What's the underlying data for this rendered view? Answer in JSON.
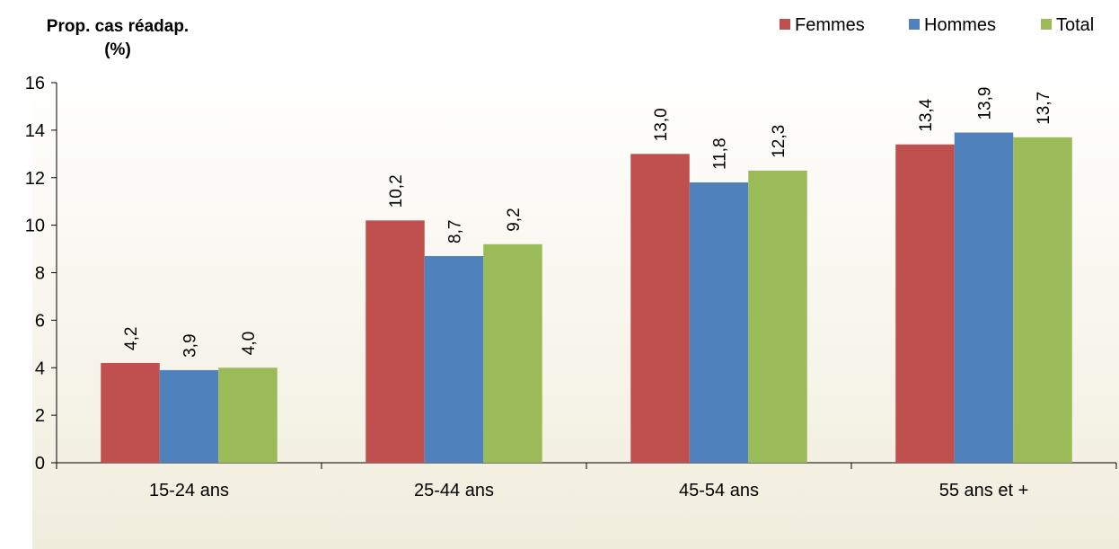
{
  "chart_data": {
    "type": "bar",
    "ylabel_lines": [
      "Prop. cas réadap.",
      "(%)"
    ],
    "categories": [
      "15-24 ans",
      "25-44 ans",
      "45-54 ans",
      "55 ans et +"
    ],
    "series": [
      {
        "name": "Femmes",
        "color": "#C0504D",
        "values": [
          4.2,
          10.2,
          13.0,
          13.4
        ],
        "labels": [
          "4,2",
          "10,2",
          "13,0",
          "13,4"
        ]
      },
      {
        "name": "Hommes",
        "color": "#4F81BD",
        "values": [
          3.9,
          8.7,
          11.8,
          13.9
        ],
        "labels": [
          "3,9",
          "8,7",
          "11,8",
          "13,9"
        ]
      },
      {
        "name": "Total",
        "color": "#9BBB59",
        "values": [
          4.0,
          9.2,
          12.3,
          13.7
        ],
        "labels": [
          "4,0",
          "9,2",
          "12,3",
          "13,7"
        ]
      }
    ],
    "ylim": [
      0,
      16
    ],
    "yticks": [
      0,
      2,
      4,
      6,
      8,
      10,
      12,
      14,
      16
    ],
    "legend_position": "top-right",
    "grid": false,
    "background_gradient": [
      "#FFFFFF",
      "#F1EDDD"
    ]
  }
}
